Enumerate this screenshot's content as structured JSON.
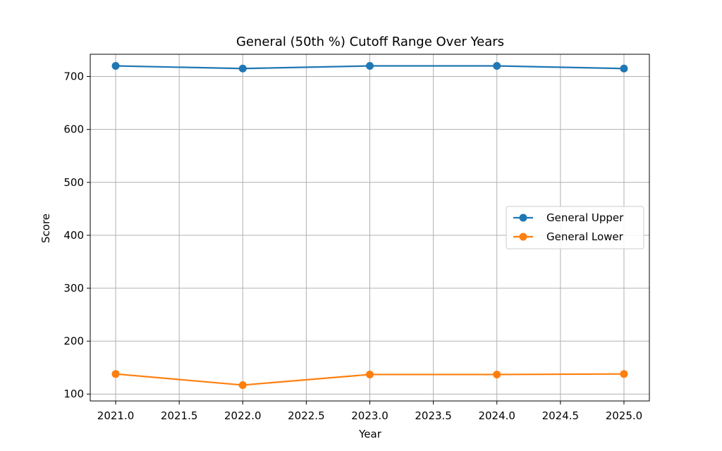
{
  "chart_data": {
    "type": "line",
    "title": "General (50th %) Cutoff Range Over Years",
    "xlabel": "Year",
    "ylabel": "Score",
    "x": [
      2021,
      2022,
      2023,
      2024,
      2025
    ],
    "xlim": [
      2020.8,
      2025.2
    ],
    "ylim": [
      87,
      742
    ],
    "xticks": [
      2021.0,
      2021.5,
      2022.0,
      2022.5,
      2023.0,
      2023.5,
      2024.0,
      2024.5,
      2025.0
    ],
    "xtick_labels": [
      "2021.0",
      "2021.5",
      "2022.0",
      "2022.5",
      "2023.0",
      "2023.5",
      "2024.0",
      "2024.5",
      "2025.0"
    ],
    "yticks": [
      100,
      200,
      300,
      400,
      500,
      600,
      700
    ],
    "ytick_labels": [
      "100",
      "200",
      "300",
      "400",
      "500",
      "600",
      "700"
    ],
    "grid": true,
    "legend_position": "center-right",
    "series": [
      {
        "name": "General Upper",
        "color": "#1f77b4",
        "values": [
          720,
          715,
          720,
          720,
          715
        ]
      },
      {
        "name": "General Lower",
        "color": "#ff7f0e",
        "values": [
          138,
          117,
          137,
          137,
          138
        ]
      }
    ]
  }
}
